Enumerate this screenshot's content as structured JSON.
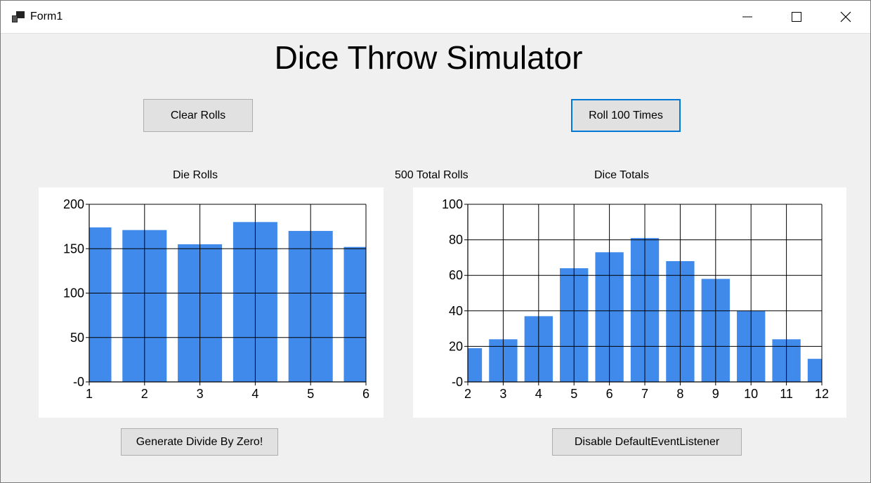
{
  "window": {
    "title": "Form1",
    "icons": {
      "app": "windows-form-icon",
      "minimize": "minimize-icon",
      "maximize": "maximize-icon",
      "close": "close-icon"
    }
  },
  "heading": "Dice Throw Simulator",
  "buttons": {
    "clear": "Clear Rolls",
    "roll": "Roll 100 Times",
    "divide": "Generate Divide By Zero!",
    "disable": "Disable DefaultEventListener"
  },
  "labels": {
    "die_rolls": "Die Rolls",
    "total_rolls": "500 Total Rolls",
    "dice_totals": "Dice Totals"
  },
  "colors": {
    "bar": "#3f8aeb",
    "accent": "#0078d7"
  },
  "chart_data": [
    {
      "type": "bar",
      "title": "Die Rolls",
      "categories": [
        "1",
        "2",
        "3",
        "4",
        "5",
        "6"
      ],
      "values": [
        174,
        171,
        155,
        180,
        170,
        152
      ],
      "ylim": [
        0,
        200
      ],
      "yticks": [
        "-0",
        "50",
        "100",
        "150",
        "200"
      ],
      "grid": true
    },
    {
      "type": "bar",
      "title": "Dice Totals",
      "categories": [
        "2",
        "3",
        "4",
        "5",
        "6",
        "7",
        "8",
        "9",
        "10",
        "11",
        "12"
      ],
      "values": [
        19,
        24,
        37,
        64,
        73,
        81,
        68,
        58,
        40,
        24,
        13
      ],
      "ylim": [
        0,
        100
      ],
      "yticks": [
        "-0",
        "20",
        "40",
        "60",
        "80",
        "100"
      ],
      "grid": true
    }
  ]
}
